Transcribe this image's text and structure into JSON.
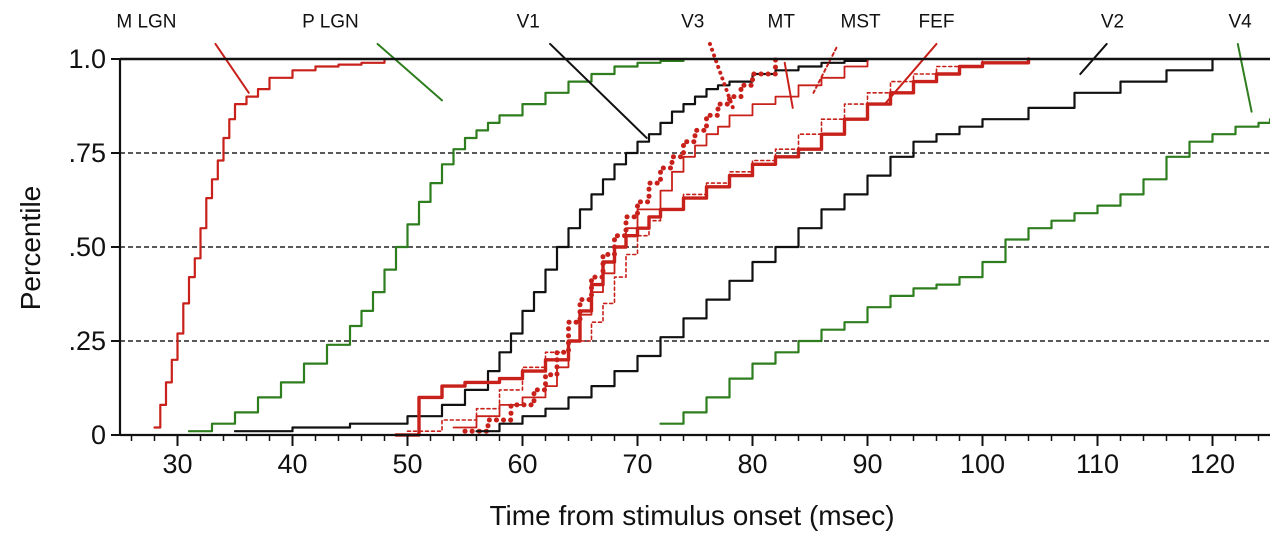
{
  "chart_data": {
    "type": "line",
    "title": "",
    "xlabel": "Time from stimulus onset (msec)",
    "ylabel": "Percentile",
    "xlim": [
      25,
      125
    ],
    "ylim": [
      0,
      1.0
    ],
    "x_ticks": [
      30,
      40,
      50,
      60,
      70,
      80,
      90,
      100,
      110,
      120
    ],
    "x_tick_labels": [
      "30",
      "40",
      "50",
      "60",
      "70",
      "80",
      "90",
      "100",
      "110",
      "120"
    ],
    "y_ticks": [
      0,
      0.25,
      0.5,
      0.75,
      1.0
    ],
    "y_tick_labels": [
      "0",
      ".25",
      ".50",
      ".75",
      "1.0"
    ],
    "gridlines_y": [
      0.25,
      0.5,
      0.75
    ],
    "colors": {
      "red": "#c8201a",
      "green": "#2e7d1e",
      "black": "#111111"
    },
    "series": [
      {
        "name": "M LGN",
        "color": "red",
        "style": "solid",
        "width": 2.2,
        "label_at": [
          27.3,
          1.07
        ],
        "leader": [
          [
            33.3,
            1.04
          ],
          [
            36.2,
            0.91
          ]
        ],
        "x": [
          28,
          28.5,
          29,
          29.5,
          30,
          30.5,
          31,
          31.5,
          32,
          32.5,
          33,
          33.5,
          34,
          34.5,
          35,
          36,
          37,
          38,
          40,
          42,
          44,
          46,
          48
        ],
        "y": [
          0.02,
          0.08,
          0.14,
          0.2,
          0.27,
          0.35,
          0.42,
          0.47,
          0.55,
          0.63,
          0.68,
          0.73,
          0.79,
          0.84,
          0.88,
          0.9,
          0.92,
          0.95,
          0.97,
          0.98,
          0.985,
          0.99,
          1.0
        ]
      },
      {
        "name": "P LGN",
        "color": "green",
        "style": "solid",
        "width": 2.2,
        "label_at": [
          43.3,
          1.07
        ],
        "leader": [
          [
            47.4,
            1.04
          ],
          [
            53,
            0.89
          ]
        ],
        "x": [
          31,
          33,
          35,
          37,
          39,
          41,
          43,
          45,
          46,
          47,
          48,
          49,
          50,
          51,
          52,
          53,
          54,
          55,
          56,
          57,
          58,
          60,
          62,
          64,
          66,
          68,
          70,
          72,
          74
        ],
        "y": [
          0.01,
          0.03,
          0.06,
          0.1,
          0.14,
          0.19,
          0.24,
          0.29,
          0.33,
          0.38,
          0.44,
          0.5,
          0.56,
          0.62,
          0.67,
          0.72,
          0.76,
          0.79,
          0.81,
          0.83,
          0.85,
          0.88,
          0.91,
          0.94,
          0.96,
          0.98,
          0.99,
          0.995,
          1.0
        ]
      },
      {
        "name": "V1",
        "color": "black",
        "style": "solid",
        "width": 2.2,
        "label_at": [
          60.5,
          1.07
        ],
        "leader": [
          [
            62.4,
            1.04
          ],
          [
            70.8,
            0.79
          ]
        ],
        "x": [
          35,
          40,
          45,
          50,
          53,
          55,
          57,
          58,
          59,
          60,
          61,
          62,
          63,
          64,
          65,
          66,
          67,
          68,
          69,
          70,
          71,
          72,
          73,
          74,
          75,
          76,
          77,
          78,
          80,
          82,
          84,
          86,
          88,
          90
        ],
        "y": [
          0.01,
          0.02,
          0.03,
          0.05,
          0.08,
          0.12,
          0.17,
          0.22,
          0.27,
          0.33,
          0.38,
          0.44,
          0.5,
          0.55,
          0.6,
          0.64,
          0.68,
          0.72,
          0.75,
          0.78,
          0.8,
          0.83,
          0.86,
          0.88,
          0.9,
          0.92,
          0.93,
          0.94,
          0.96,
          0.97,
          0.98,
          0.99,
          0.995,
          1.0
        ]
      },
      {
        "name": "V3",
        "color": "red",
        "style": "dotted",
        "width": 5,
        "label_at": [
          74.8,
          1.07
        ],
        "leader": [
          [
            76.3,
            1.04
          ],
          [
            78.3,
            0.87
          ]
        ],
        "x": [
          55,
          57,
          59,
          61,
          62,
          63,
          64,
          65,
          66,
          67,
          68,
          69,
          70,
          71,
          72,
          73,
          74,
          75,
          76,
          77,
          78,
          79,
          80,
          82
        ],
        "y": [
          0.01,
          0.04,
          0.08,
          0.12,
          0.16,
          0.22,
          0.3,
          0.36,
          0.42,
          0.48,
          0.53,
          0.58,
          0.62,
          0.67,
          0.71,
          0.74,
          0.78,
          0.81,
          0.85,
          0.88,
          0.9,
          0.93,
          0.96,
          1.0
        ]
      },
      {
        "name": "MT",
        "color": "red",
        "style": "solid",
        "width": 1.8,
        "label_at": [
          82.5,
          1.07
        ],
        "leader": [
          [
            82.8,
            0.99
          ],
          [
            83.5,
            0.87
          ]
        ],
        "x": [
          54,
          56,
          58,
          60,
          62,
          63,
          64,
          65,
          66,
          67,
          68,
          69,
          70,
          72,
          73,
          74,
          75,
          76,
          77,
          78,
          80,
          82,
          84,
          86,
          88,
          90
        ],
        "y": [
          0.02,
          0.05,
          0.08,
          0.1,
          0.13,
          0.18,
          0.25,
          0.32,
          0.38,
          0.43,
          0.5,
          0.55,
          0.6,
          0.65,
          0.7,
          0.74,
          0.77,
          0.8,
          0.82,
          0.85,
          0.88,
          0.9,
          0.93,
          0.95,
          0.98,
          1.0
        ]
      },
      {
        "name": "MST",
        "color": "red",
        "style": "dashed",
        "width": 1.6,
        "label_at": [
          89.4,
          1.07
        ],
        "leader": [
          [
            87.3,
            1.03
          ],
          [
            85.3,
            0.91
          ]
        ],
        "x": [
          50,
          53,
          56,
          58,
          60,
          62,
          64,
          66,
          67,
          68,
          69,
          70,
          71,
          72,
          74,
          76,
          78,
          80,
          82,
          84,
          86,
          88,
          90,
          92,
          94,
          96,
          100
        ],
        "y": [
          0.01,
          0.04,
          0.07,
          0.12,
          0.18,
          0.22,
          0.25,
          0.3,
          0.35,
          0.42,
          0.48,
          0.53,
          0.57,
          0.6,
          0.64,
          0.67,
          0.7,
          0.73,
          0.76,
          0.8,
          0.84,
          0.88,
          0.91,
          0.94,
          0.96,
          0.98,
          1.0
        ]
      },
      {
        "name": "FEF",
        "color": "red",
        "style": "solid",
        "width": 3.4,
        "label_at": [
          96,
          1.07
        ],
        "leader": [
          [
            96,
            1.04
          ],
          [
            91.5,
            0.88
          ]
        ],
        "x": [
          49,
          51,
          53,
          55,
          57,
          58,
          60,
          62,
          64,
          65,
          66,
          67,
          68,
          69,
          70,
          71,
          72,
          74,
          76,
          78,
          80,
          82,
          84,
          86,
          88,
          90,
          92,
          94,
          96,
          98,
          100,
          104
        ],
        "y": [
          0.0,
          0.1,
          0.13,
          0.14,
          0.14,
          0.15,
          0.17,
          0.2,
          0.25,
          0.33,
          0.4,
          0.46,
          0.5,
          0.53,
          0.55,
          0.58,
          0.6,
          0.63,
          0.66,
          0.69,
          0.72,
          0.74,
          0.76,
          0.8,
          0.84,
          0.88,
          0.91,
          0.94,
          0.96,
          0.98,
          0.99,
          1.0
        ]
      },
      {
        "name": "V2",
        "color": "black",
        "style": "solid",
        "width": 2.2,
        "label_at": [
          111.3,
          1.07
        ],
        "leader": [
          [
            110.8,
            1.04
          ],
          [
            108.5,
            0.96
          ]
        ],
        "x": [
          56,
          58,
          60,
          62,
          64,
          66,
          68,
          70,
          72,
          74,
          76,
          78,
          80,
          82,
          84,
          86,
          88,
          90,
          92,
          94,
          96,
          98,
          100,
          104,
          108,
          112,
          116,
          120
        ],
        "y": [
          0.01,
          0.03,
          0.05,
          0.07,
          0.1,
          0.13,
          0.17,
          0.21,
          0.26,
          0.31,
          0.36,
          0.41,
          0.46,
          0.5,
          0.55,
          0.6,
          0.64,
          0.69,
          0.74,
          0.78,
          0.8,
          0.82,
          0.84,
          0.87,
          0.91,
          0.94,
          0.97,
          1.0
        ]
      },
      {
        "name": "V4",
        "color": "green",
        "style": "solid",
        "width": 2.2,
        "label_at": [
          122.4,
          1.07
        ],
        "leader": [
          [
            122.2,
            1.04
          ],
          [
            123.4,
            0.86
          ]
        ],
        "x": [
          72,
          74,
          76,
          78,
          80,
          82,
          84,
          86,
          88,
          90,
          92,
          94,
          96,
          98,
          100,
          102,
          104,
          106,
          108,
          110,
          112,
          114,
          116,
          118,
          120,
          122,
          124,
          125
        ],
        "y": [
          0.03,
          0.06,
          0.1,
          0.15,
          0.19,
          0.22,
          0.25,
          0.28,
          0.3,
          0.34,
          0.37,
          0.39,
          0.4,
          0.42,
          0.46,
          0.52,
          0.55,
          0.57,
          0.59,
          0.61,
          0.64,
          0.68,
          0.74,
          0.78,
          0.8,
          0.82,
          0.83,
          0.84
        ]
      }
    ]
  }
}
